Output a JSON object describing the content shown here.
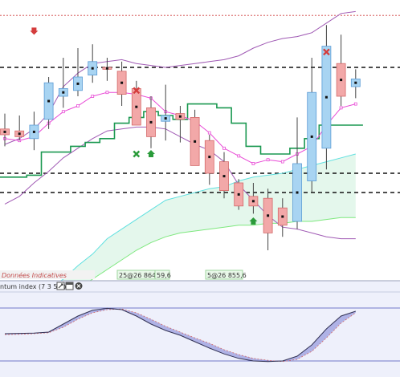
{
  "title": "",
  "colors": {
    "bull": "#a8d4f2",
    "bull_edge": "#5b9bd5",
    "bear": "#f2a8a8",
    "bear_edge": "#d46a6a",
    "upper_band": "#a05ab4",
    "lower_band": "#a05ab4",
    "stop_line": "#1a9850",
    "magenta": "#e84ad6",
    "cyan": "#5fe0e0",
    "green_light": "#7ee87e",
    "red_dotted": "#d04040",
    "osc_fill": "#7b80d6",
    "osc_line": "#333355"
  },
  "panels": {
    "legend_text": "Données Indicatives",
    "osc_header": "ntum index (7 3 5 3)",
    "price_label_1": "25@26 864,6",
    "price_label_1b": "59,6",
    "price_label_2": "5@26 855,6"
  },
  "chart_data": {
    "type": "candlestick",
    "ylim": [
      26820,
      26960
    ],
    "candles": [
      {
        "o": 26893,
        "h": 26901,
        "l": 26884,
        "c": 26890
      },
      {
        "o": 26892,
        "h": 26900,
        "l": 26887,
        "c": 26889
      },
      {
        "o": 26888,
        "h": 26902,
        "l": 26882,
        "c": 26895
      },
      {
        "o": 26898,
        "h": 26920,
        "l": 26893,
        "c": 26917
      },
      {
        "o": 26910,
        "h": 26930,
        "l": 26904,
        "c": 26914
      },
      {
        "o": 26913,
        "h": 26935,
        "l": 26910,
        "c": 26920
      },
      {
        "o": 26921,
        "h": 26937,
        "l": 26917,
        "c": 26928
      },
      {
        "o": 26925,
        "h": 26930,
        "l": 26918,
        "c": 26924
      },
      {
        "o": 26923,
        "h": 26928,
        "l": 26905,
        "c": 26911
      },
      {
        "o": 26914,
        "h": 26918,
        "l": 26895,
        "c": 26895
      },
      {
        "o": 26904,
        "h": 26910,
        "l": 26883,
        "c": 26889
      },
      {
        "o": 26897,
        "h": 26916,
        "l": 26887,
        "c": 26900
      },
      {
        "o": 26901,
        "h": 26905,
        "l": 26886,
        "c": 26898
      },
      {
        "o": 26899,
        "h": 26903,
        "l": 26874,
        "c": 26874
      },
      {
        "o": 26887,
        "h": 26890,
        "l": 26864,
        "c": 26870
      },
      {
        "o": 26876,
        "h": 26881,
        "l": 26857,
        "c": 26861
      },
      {
        "o": 26865,
        "h": 26867,
        "l": 26851,
        "c": 26853
      },
      {
        "o": 26858,
        "h": 26865,
        "l": 26849,
        "c": 26853
      },
      {
        "o": 26857,
        "h": 26862,
        "l": 26830,
        "c": 26839
      },
      {
        "o": 26852,
        "h": 26857,
        "l": 26837,
        "c": 26843
      },
      {
        "o": 26845,
        "h": 26899,
        "l": 26841,
        "c": 26875
      },
      {
        "o": 26866,
        "h": 26930,
        "l": 26860,
        "c": 26912
      },
      {
        "o": 26883,
        "h": 26947,
        "l": 26872,
        "c": 26936
      },
      {
        "o": 26927,
        "h": 26942,
        "l": 26905,
        "c": 26910
      },
      {
        "o": 26915,
        "h": 26924,
        "l": 26909,
        "c": 26919
      }
    ],
    "upper_band": [
      26885,
      26888,
      26893,
      26901,
      26915,
      26922,
      26927,
      26928,
      26929,
      26927,
      26926,
      26925,
      26926,
      26927,
      26928,
      26929,
      26931,
      26935,
      26938,
      26940,
      26941,
      26943,
      26948,
      26953,
      26954
    ],
    "lower_band": [
      26854,
      26858,
      26865,
      26871,
      26878,
      26883,
      26888,
      26892,
      26893,
      26894,
      26894,
      26893,
      26889,
      26885,
      26882,
      26876,
      26864,
      26856,
      26848,
      26842,
      26841,
      26839,
      26837,
      26836,
      26836
    ],
    "stop_line": [
      26868,
      26868,
      26869,
      26881,
      26881,
      26884,
      26886,
      26888,
      26896,
      26899,
      26902,
      26900,
      26898,
      26906,
      26906,
      26904,
      26896,
      26884,
      26880,
      26880,
      26883,
      26888,
      26895,
      26895,
      26895
    ],
    "magenta_line": [
      26888,
      26887,
      26889,
      26896,
      26902,
      26905,
      26910,
      26912,
      26912,
      26911,
      26909,
      26902,
      26900,
      26897,
      26891,
      26883,
      26879,
      26875,
      26877,
      26876,
      26880,
      26884,
      26895,
      26904,
      26906
    ],
    "cyan_line": [
      26800,
      26802,
      26805,
      26810,
      26815,
      26822,
      26828,
      26836,
      26841,
      26846,
      26851,
      26856,
      26858,
      26860,
      26862,
      26863,
      26866,
      26868,
      26869,
      26870,
      26872,
      26874,
      26876,
      26878,
      26880
    ],
    "green_line": [
      26790,
      26792,
      26795,
      26800,
      26805,
      26810,
      26815,
      26820,
      26825,
      26830,
      26834,
      26837,
      26839,
      26840,
      26841,
      26842,
      26843,
      26843,
      26844,
      26844,
      26845,
      26845,
      26846,
      26847,
      26847
    ],
    "hlines": [
      {
        "y": 26952,
        "style": "red-dotted"
      },
      {
        "y": 26925,
        "style": "black-dashed"
      },
      {
        "y": 26870,
        "style": "black-dashed"
      },
      {
        "y": 26860,
        "style": "black-dashed"
      }
    ],
    "markers": [
      {
        "i": 2,
        "type": "red-arrow-down",
        "y": 26944
      },
      {
        "i": 9,
        "type": "red-x",
        "y": 26913
      },
      {
        "i": 9,
        "type": "green-x",
        "y": 26880
      },
      {
        "i": 10,
        "type": "green-arrow-up",
        "y": 26880
      },
      {
        "i": 17,
        "type": "green-arrow-up",
        "y": 26845
      },
      {
        "i": 22,
        "type": "red-x",
        "y": 26933
      }
    ],
    "oscillator": {
      "ylim": [
        -1.2,
        1.2
      ],
      "main": [
        0.05,
        0.06,
        0.07,
        0.1,
        0.35,
        0.6,
        0.78,
        0.84,
        0.8,
        0.6,
        0.35,
        0.15,
        0.0,
        -0.2,
        -0.4,
        -0.58,
        -0.72,
        -0.8,
        -0.82,
        -0.8,
        -0.65,
        -0.3,
        0.2,
        0.6,
        0.75
      ],
      "signal": [
        0.02,
        0.03,
        0.05,
        0.08,
        0.25,
        0.5,
        0.7,
        0.8,
        0.82,
        0.7,
        0.5,
        0.28,
        0.1,
        -0.08,
        -0.25,
        -0.45,
        -0.6,
        -0.72,
        -0.78,
        -0.82,
        -0.75,
        -0.5,
        -0.08,
        0.38,
        0.7
      ],
      "hlines": [
        0.85,
        -0.8
      ]
    }
  }
}
